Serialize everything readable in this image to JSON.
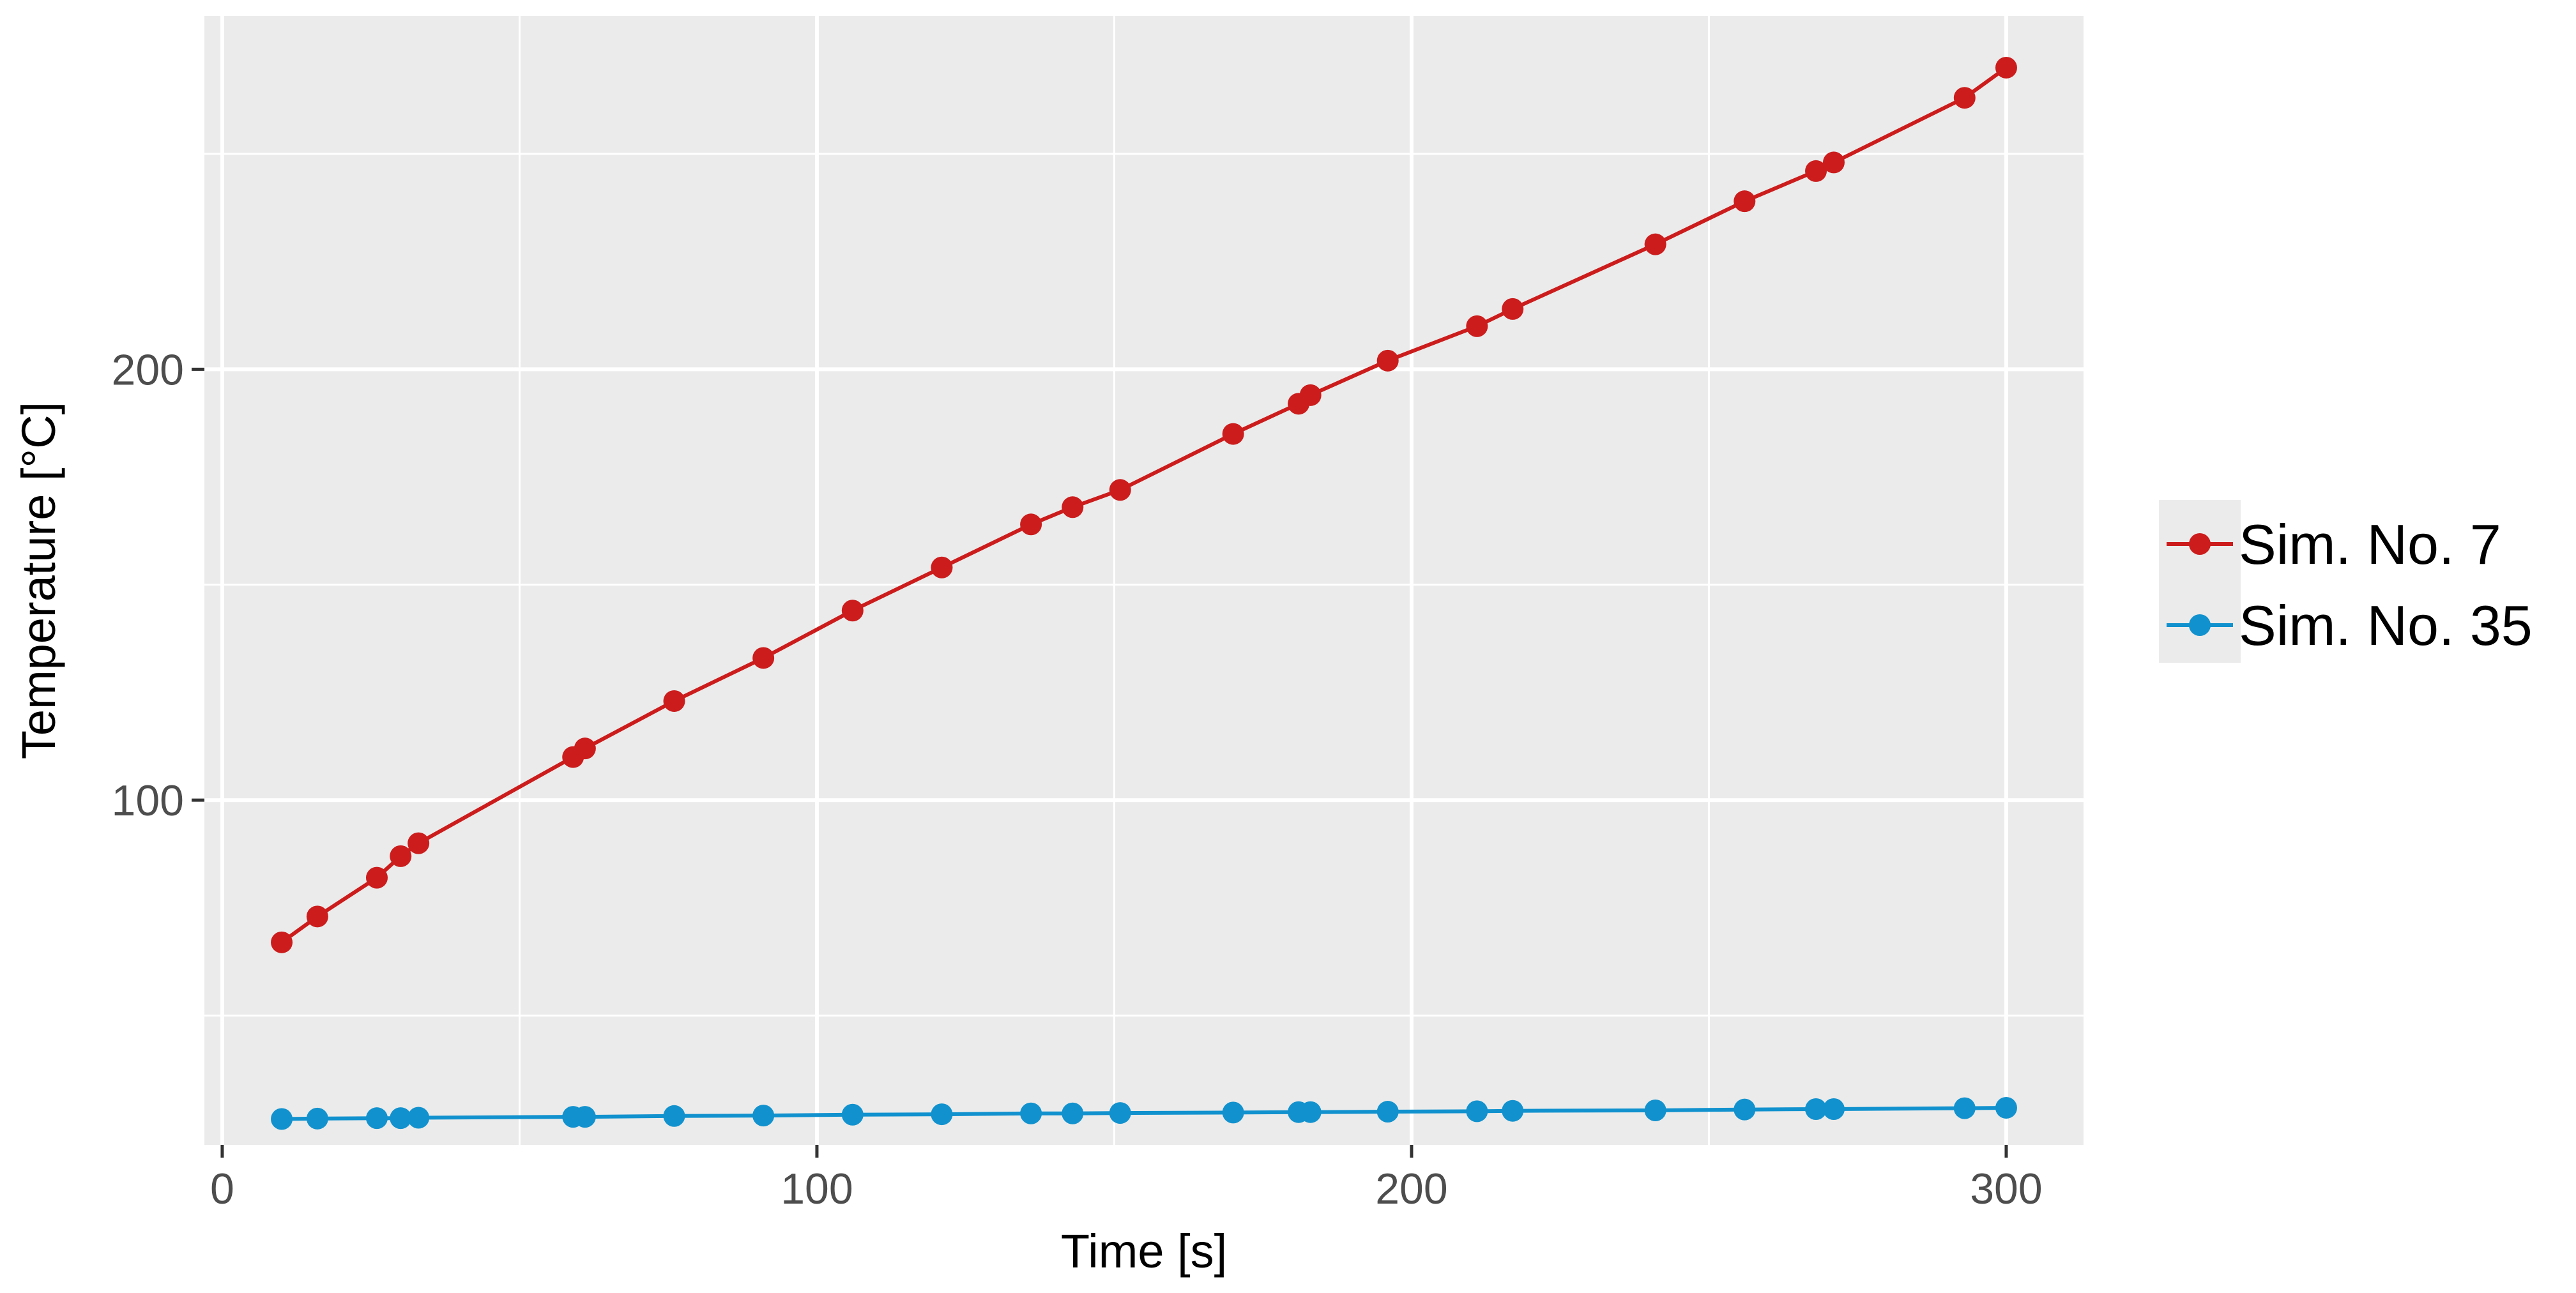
{
  "chart_data": {
    "type": "line",
    "title": "",
    "xlabel": "Time [s]",
    "ylabel": "Temperature [°C]",
    "xlim": [
      -3,
      313
    ],
    "ylim": [
      20,
      282
    ],
    "x_ticks": [
      0,
      100,
      200,
      300
    ],
    "x_tick_labels": [
      "0",
      "100",
      "200",
      "300"
    ],
    "x_minor_ticks": [
      50,
      150,
      250
    ],
    "y_ticks": [
      100,
      200
    ],
    "y_tick_labels": [
      "100",
      "200"
    ],
    "y_minor_ticks": [
      50,
      150,
      250
    ],
    "grid": true,
    "legend_position": "right",
    "series": [
      {
        "name": "Sim. No. 7",
        "color": "#cc1c1c",
        "x": [
          10,
          16,
          26,
          30,
          33,
          59,
          61,
          76,
          91,
          106,
          121,
          136,
          143,
          151,
          170,
          181,
          183,
          196,
          211,
          217,
          241,
          256,
          268,
          271,
          293,
          300
        ],
        "y": [
          67,
          73,
          82,
          87,
          90,
          110,
          112,
          123,
          133,
          144,
          154,
          164,
          168,
          172,
          185,
          192,
          194,
          202,
          210,
          214,
          229,
          239,
          246,
          248,
          263,
          270
        ]
      },
      {
        "name": "Sim. No. 35",
        "color": "#1192ce",
        "x": [
          10,
          16,
          26,
          30,
          33,
          59,
          61,
          76,
          91,
          106,
          121,
          136,
          143,
          151,
          170,
          181,
          183,
          196,
          211,
          217,
          241,
          256,
          268,
          271,
          293,
          300
        ],
        "y": [
          26.0,
          26.1,
          26.2,
          26.2,
          26.3,
          26.5,
          26.5,
          26.7,
          26.8,
          27.0,
          27.1,
          27.3,
          27.3,
          27.4,
          27.5,
          27.6,
          27.6,
          27.7,
          27.8,
          27.9,
          28.0,
          28.2,
          28.3,
          28.3,
          28.5,
          28.6
        ]
      }
    ]
  }
}
